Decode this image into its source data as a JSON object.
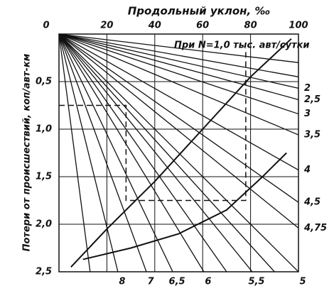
{
  "chart_data": {
    "type": "nomogram",
    "title": "Продольный уклон, ‰",
    "y_label": "Потери от происшествий, коп/авт-км",
    "annotation": "При N=1,0 тыс. авт/сутки",
    "xlim": [
      0,
      100
    ],
    "ylim": [
      0,
      2.5
    ],
    "xticks": [
      0,
      20,
      40,
      60,
      80,
      100
    ],
    "yticks": [
      {
        "value": 0.5,
        "label": "0,5"
      },
      {
        "value": 1.0,
        "label": "1,0"
      },
      {
        "value": 1.5,
        "label": "1,5"
      },
      {
        "value": 2.0,
        "label": "2,0"
      },
      {
        "value": 2.5,
        "label": "2,5"
      }
    ],
    "grid": true,
    "color": "#111",
    "rays": [
      {
        "label": null,
        "x": 100,
        "y": 0.3
      },
      {
        "label": null,
        "x": 100,
        "y": 0.45
      },
      {
        "label": "2",
        "x": 100,
        "y": 0.57
      },
      {
        "label": "2,5",
        "x": 100,
        "y": 0.69
      },
      {
        "label": "3",
        "x": 100,
        "y": 0.84
      },
      {
        "label": "3,5",
        "x": 100,
        "y": 1.06
      },
      {
        "label": "4",
        "x": 100,
        "y": 1.43
      },
      {
        "label": "4,5",
        "x": 100,
        "y": 1.77
      },
      {
        "label": "4,75",
        "x": 100,
        "y": 2.04
      },
      {
        "label": "5",
        "x": 100,
        "y": 2.5
      },
      {
        "label": null,
        "x": 90,
        "y": 2.5
      },
      {
        "label": "5,5",
        "x": 80.7,
        "y": 2.5
      },
      {
        "label": null,
        "x": 70,
        "y": 2.5
      },
      {
        "label": "6",
        "x": 60.5,
        "y": 2.5
      },
      {
        "label": "6,5",
        "x": 47.5,
        "y": 2.5
      },
      {
        "label": "7",
        "x": 36.5,
        "y": 2.5
      },
      {
        "label": "8",
        "x": 24.6,
        "y": 2.5
      },
      {
        "label": null,
        "x": 13,
        "y": 2.5
      }
    ],
    "curves": [
      {
        "x": [
          5,
          20,
          40,
          60,
          80,
          97
        ],
        "y": [
          2.45,
          2.05,
          1.55,
          1.0,
          0.45,
          0.05
        ]
      },
      {
        "x": [
          10,
          30,
          50,
          70,
          85,
          95
        ],
        "y": [
          2.37,
          2.25,
          2.1,
          1.85,
          1.5,
          1.25
        ]
      }
    ],
    "key": {
      "x": [
        0,
        28,
        28,
        78,
        78
      ],
      "y": [
        0.75,
        0.75,
        1.75,
        1.75,
        0.15
      ]
    }
  }
}
